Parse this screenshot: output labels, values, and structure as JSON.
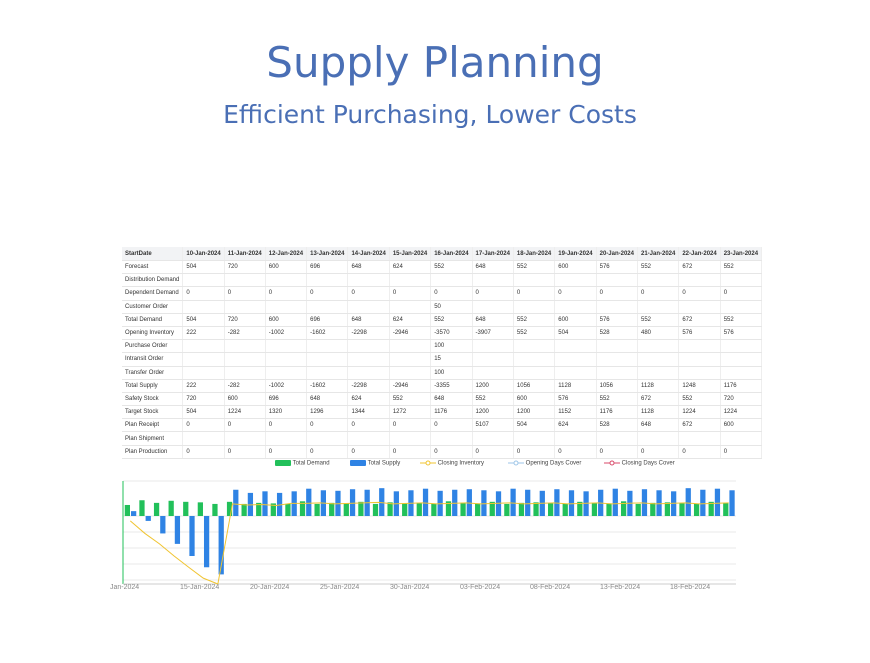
{
  "title": "Supply Planning",
  "subtitle": "Efficient Purchasing, Lower Costs",
  "table": {
    "headers": [
      "StartDate",
      "10-Jan-2024",
      "11-Jan-2024",
      "12-Jan-2024",
      "13-Jan-2024",
      "14-Jan-2024",
      "15-Jan-2024",
      "16-Jan-2024",
      "17-Jan-2024",
      "18-Jan-2024",
      "19-Jan-2024",
      "20-Jan-2024",
      "21-Jan-2024",
      "22-Jan-2024",
      "23-Jan-2024"
    ],
    "rows": [
      [
        "Forecast",
        "504",
        "720",
        "600",
        "696",
        "648",
        "624",
        "552",
        "648",
        "552",
        "600",
        "576",
        "552",
        "672",
        "552"
      ],
      [
        "Distribution Demand",
        "",
        "",
        "",
        "",
        "",
        "",
        "",
        "",
        "",
        "",
        "",
        "",
        "",
        ""
      ],
      [
        "Dependent Demand",
        "0",
        "0",
        "0",
        "0",
        "0",
        "0",
        "0",
        "0",
        "0",
        "0",
        "0",
        "0",
        "0",
        "0"
      ],
      [
        "Customer Order",
        "",
        "",
        "",
        "",
        "",
        "",
        "50",
        "",
        "",
        "",
        "",
        "",
        "",
        ""
      ],
      [
        "Total Demand",
        "504",
        "720",
        "600",
        "696",
        "648",
        "624",
        "552",
        "648",
        "552",
        "600",
        "576",
        "552",
        "672",
        "552"
      ],
      [
        "Opening Inventory",
        "222",
        "-282",
        "-1002",
        "-1602",
        "-2298",
        "-2946",
        "-3570",
        "-3907",
        "552",
        "504",
        "528",
        "480",
        "576",
        "576"
      ],
      [
        "Purchase Order",
        "",
        "",
        "",
        "",
        "",
        "",
        "100",
        "",
        "",
        "",
        "",
        "",
        "",
        ""
      ],
      [
        "Intransit Order",
        "",
        "",
        "",
        "",
        "",
        "",
        "15",
        "",
        "",
        "",
        "",
        "",
        "",
        ""
      ],
      [
        "Transfer Order",
        "",
        "",
        "",
        "",
        "",
        "",
        "100",
        "",
        "",
        "",
        "",
        "",
        "",
        ""
      ],
      [
        "Total Supply",
        "222",
        "-282",
        "-1002",
        "-1602",
        "-2298",
        "-2946",
        "-3355",
        "1200",
        "1056",
        "1128",
        "1056",
        "1128",
        "1248",
        "1176"
      ],
      [
        "Safety Stock",
        "720",
        "600",
        "696",
        "648",
        "624",
        "552",
        "648",
        "552",
        "600",
        "576",
        "552",
        "672",
        "552",
        "720"
      ],
      [
        "Target Stock",
        "504",
        "1224",
        "1320",
        "1296",
        "1344",
        "1272",
        "1176",
        "1200",
        "1200",
        "1152",
        "1176",
        "1128",
        "1224",
        "1224"
      ],
      [
        "Plan Receipt",
        "0",
        "0",
        "0",
        "0",
        "0",
        "0",
        "0",
        "5107",
        "504",
        "624",
        "528",
        "648",
        "672",
        "600"
      ],
      [
        "Plan Shipment",
        "",
        "",
        "",
        "",
        "",
        "",
        "",
        "",
        "",
        "",
        "",
        "",
        "",
        ""
      ],
      [
        "Plan Production",
        "0",
        "0",
        "0",
        "0",
        "0",
        "0",
        "0",
        "0",
        "0",
        "0",
        "0",
        "0",
        "0",
        "0"
      ]
    ]
  },
  "chart_data": {
    "type": "bar",
    "legend": [
      "Total Demand",
      "Total Supply",
      "Closing Inventory",
      "Opening Days Cover",
      "Closing Days Cover"
    ],
    "colors": {
      "total_demand": "#22c05a",
      "total_supply": "#2f83e4",
      "closing_inventory": "#f0c431",
      "opening_days_cover": "#9ec6e8",
      "closing_days_cover": "#d84a6a"
    },
    "x_tick_labels": [
      "Jan-2024",
      "15-Jan-2024",
      "20-Jan-2024",
      "25-Jan-2024",
      "30-Jan-2024",
      "03-Feb-2024",
      "08-Feb-2024",
      "13-Feb-2024",
      "18-Feb-2024"
    ],
    "total_demand": [
      504,
      720,
      600,
      696,
      648,
      624,
      552,
      648,
      552,
      600,
      576,
      552,
      672,
      552,
      600,
      576,
      648,
      552,
      624,
      576,
      600,
      552,
      672,
      600,
      576,
      648,
      552,
      600,
      624,
      576,
      552,
      648,
      600,
      576,
      672,
      552,
      600,
      624,
      576,
      552,
      648,
      600
    ],
    "total_supply": [
      222,
      -282,
      -1002,
      -1602,
      -2298,
      -2946,
      -3355,
      1200,
      1056,
      1128,
      1056,
      1128,
      1248,
      1176,
      1152,
      1224,
      1200,
      1272,
      1128,
      1176,
      1248,
      1152,
      1200,
      1224,
      1176,
      1128,
      1248,
      1200,
      1152,
      1224,
      1176,
      1128,
      1200,
      1248,
      1152,
      1224,
      1176,
      1128,
      1272,
      1200,
      1248,
      1176
    ],
    "closing_inventory": [
      -282,
      -1002,
      -1602,
      -2298,
      -2946,
      -3570,
      -3907,
      552,
      504,
      528,
      480,
      576,
      576,
      600,
      552,
      576,
      600,
      624,
      552,
      576,
      600,
      552,
      576,
      600,
      552,
      576,
      600,
      552,
      576,
      600,
      552,
      576,
      600,
      552,
      576,
      600,
      552,
      576,
      600,
      552,
      576,
      600
    ]
  }
}
